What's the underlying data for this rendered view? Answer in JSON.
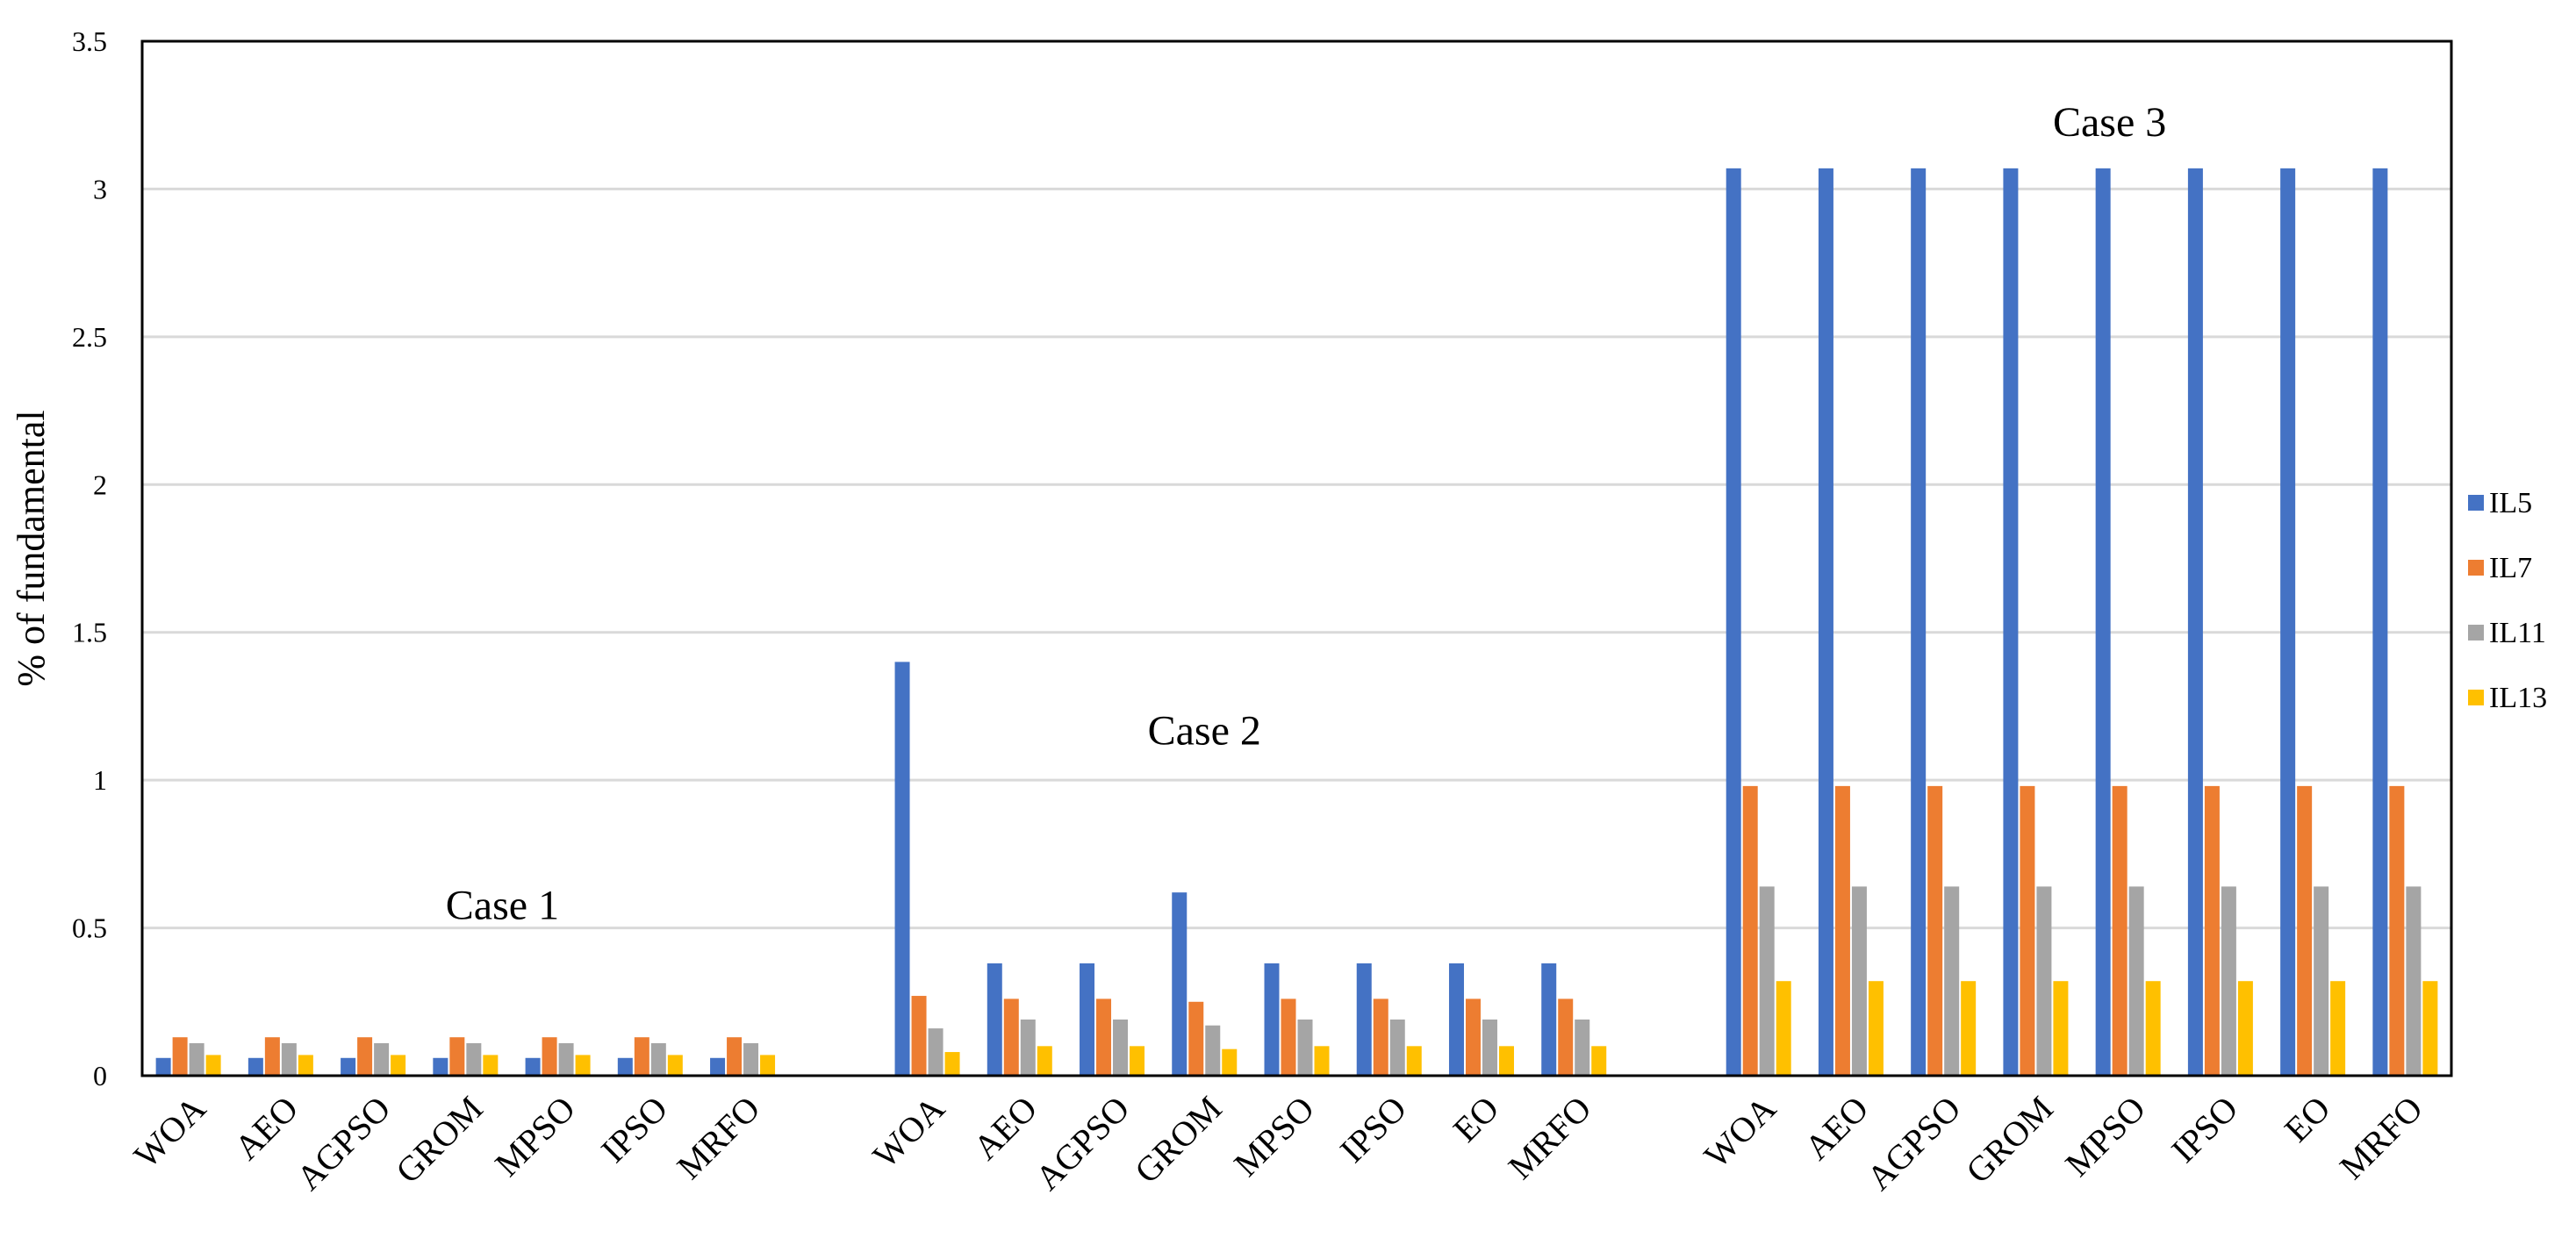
{
  "chart_data": {
    "type": "bar",
    "title": "",
    "xlabel": "",
    "ylabel": "% of fundamental",
    "ylim": [
      0,
      3.5
    ],
    "yticks": [
      0,
      0.5,
      1,
      1.5,
      2,
      2.5,
      3,
      3.5
    ],
    "ytick_labels": [
      "0",
      "0.5",
      "1",
      "1.5",
      "2",
      "2.5",
      "3",
      "3.5"
    ],
    "grid": true,
    "legend_position": "right",
    "colors": {
      "IL5": "#4472C4",
      "IL7": "#ED7D31",
      "IL11": "#A5A5A5",
      "IL13": "#FFC000"
    },
    "categories": [
      "WOA",
      "AEO",
      "AGPSO",
      "GROM",
      "MPSO",
      "IPSO",
      "MRFO",
      "",
      "WOA",
      "AEO",
      "AGPSO",
      "GROM",
      "MPSO",
      "IPSO",
      "EO",
      "MRFO",
      "",
      "WOA",
      "AEO",
      "AGPSO",
      "GROM",
      "MPSO",
      "IPSO",
      "EO",
      "MRFO"
    ],
    "series": [
      {
        "name": "IL5",
        "values": [
          0.06,
          0.06,
          0.06,
          0.06,
          0.06,
          0.06,
          0.06,
          null,
          1.4,
          0.38,
          0.38,
          0.62,
          0.38,
          0.38,
          0.38,
          0.38,
          null,
          3.07,
          3.07,
          3.07,
          3.07,
          3.07,
          3.07,
          3.07,
          3.07
        ]
      },
      {
        "name": "IL7",
        "values": [
          0.13,
          0.13,
          0.13,
          0.13,
          0.13,
          0.13,
          0.13,
          null,
          0.27,
          0.26,
          0.26,
          0.25,
          0.26,
          0.26,
          0.26,
          0.26,
          null,
          0.98,
          0.98,
          0.98,
          0.98,
          0.98,
          0.98,
          0.98,
          0.98
        ]
      },
      {
        "name": "IL11",
        "values": [
          0.11,
          0.11,
          0.11,
          0.11,
          0.11,
          0.11,
          0.11,
          null,
          0.16,
          0.19,
          0.19,
          0.17,
          0.19,
          0.19,
          0.19,
          0.19,
          null,
          0.64,
          0.64,
          0.64,
          0.64,
          0.64,
          0.64,
          0.64,
          0.64
        ]
      },
      {
        "name": "IL13",
        "values": [
          0.07,
          0.07,
          0.07,
          0.07,
          0.07,
          0.07,
          0.07,
          null,
          0.08,
          0.1,
          0.1,
          0.09,
          0.1,
          0.1,
          0.1,
          0.1,
          null,
          0.32,
          0.32,
          0.32,
          0.32,
          0.32,
          0.32,
          0.32,
          0.32
        ]
      }
    ],
    "annotations": [
      {
        "text": "Case 1",
        "x_category_index": 3.4,
        "y": 0.53
      },
      {
        "text": "Case 2",
        "x_category_index": 11.0,
        "y": 1.12
      },
      {
        "text": "Case 3",
        "x_category_index": 20.8,
        "y": 3.18
      }
    ]
  }
}
